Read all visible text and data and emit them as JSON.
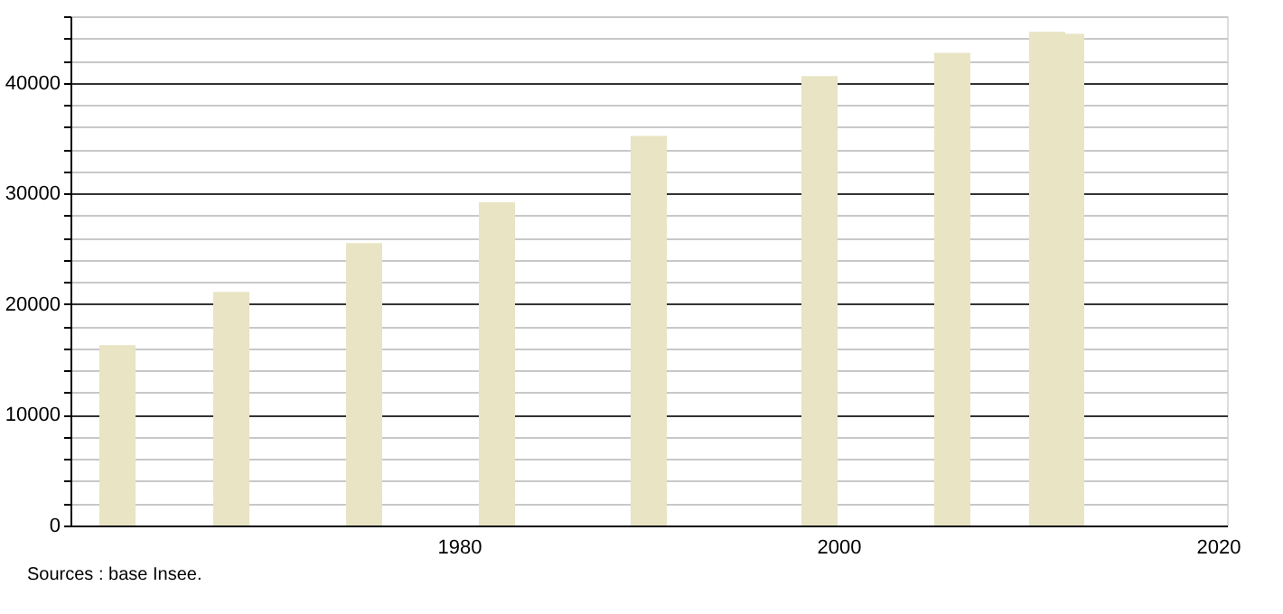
{
  "chart_data": {
    "type": "bar",
    "x": [
      1962,
      1968,
      1975,
      1982,
      1990,
      1999,
      2006,
      2011,
      2012
    ],
    "values": [
      16300,
      21100,
      25500,
      29200,
      35200,
      40600,
      42700,
      44600,
      44400
    ],
    "color": "#e8e4c4",
    "xlim": [
      1960,
      2020
    ],
    "xticks": [
      1980,
      2000,
      2020
    ],
    "ylim": [
      0,
      46000
    ],
    "yticks": [
      0,
      {
        "value": 2000,
        "label": null
      },
      {
        "value": 4000,
        "label": null
      },
      {
        "value": 6000,
        "label": null
      },
      {
        "value": 8000,
        "label": null
      },
      10000,
      {
        "value": 12000,
        "label": null
      },
      {
        "value": 14000,
        "label": null
      },
      {
        "value": 16000,
        "label": null
      },
      {
        "value": 18000,
        "label": null
      },
      20000,
      {
        "value": 22000,
        "label": null
      },
      {
        "value": 24000,
        "label": null
      },
      {
        "value": 26000,
        "label": null
      },
      {
        "value": 28000,
        "label": null
      },
      30000,
      {
        "value": 32000,
        "label": null
      },
      {
        "value": 34000,
        "label": null
      },
      {
        "value": 36000,
        "label": null
      },
      {
        "value": 38000,
        "label": null
      },
      40000,
      {
        "value": 42000,
        "label": null
      },
      {
        "value": 44000,
        "label": null
      },
      {
        "value": 46000,
        "label": null
      }
    ],
    "grid": "y",
    "annotations": [
      "Sources : base Insee."
    ]
  }
}
